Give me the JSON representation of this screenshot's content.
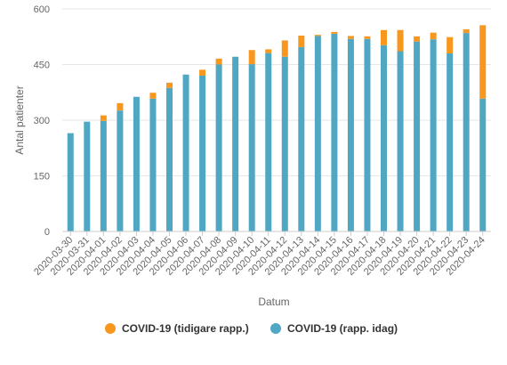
{
  "chart_data": {
    "type": "bar",
    "stacked": true,
    "categories": [
      "2020-03-30",
      "2020-03-31",
      "2020-04-01",
      "2020-04-02",
      "2020-04-03",
      "2020-04-04",
      "2020-04-05",
      "2020-04-06",
      "2020-04-07",
      "2020-04-08",
      "2020-04-09",
      "2020-04-10",
      "2020-04-11",
      "2020-04-12",
      "2020-04-13",
      "2020-04-14",
      "2020-04-15",
      "2020-04-16",
      "2020-04-17",
      "2020-04-18",
      "2020-04-19",
      "2020-04-20",
      "2020-04-21",
      "2020-04-22",
      "2020-04-23",
      "2020-04-24"
    ],
    "series": [
      {
        "name": "COVID-19 (rapp. idag)",
        "color": "#4fa7c4",
        "values": [
          265,
          296,
          298,
          326,
          363,
          358,
          387,
          423,
          420,
          450,
          471,
          451,
          481,
          471,
          497,
          527,
          533,
          519,
          519,
          502,
          486,
          512,
          518,
          480,
          535,
          358
        ]
      },
      {
        "name": "COVID-19 (tidigare rapp.)",
        "color": "#f7971e",
        "values": [
          0,
          0,
          15,
          20,
          0,
          16,
          14,
          0,
          16,
          16,
          0,
          38,
          10,
          44,
          31,
          3,
          5,
          8,
          7,
          41,
          57,
          14,
          18,
          44,
          10,
          198
        ]
      }
    ],
    "xlabel": "Datum",
    "ylabel": "Antal patienter",
    "ylim": [
      0,
      600
    ],
    "yticks": [
      "0",
      "150",
      "300",
      "450",
      "600"
    ],
    "grid": true,
    "legend_position": "bottom",
    "legend": [
      {
        "label": "COVID-19 (tidigare rapp.)",
        "color": "#f7971e"
      },
      {
        "label": "COVID-19 (rapp. idag)",
        "color": "#4fa7c4"
      }
    ]
  }
}
